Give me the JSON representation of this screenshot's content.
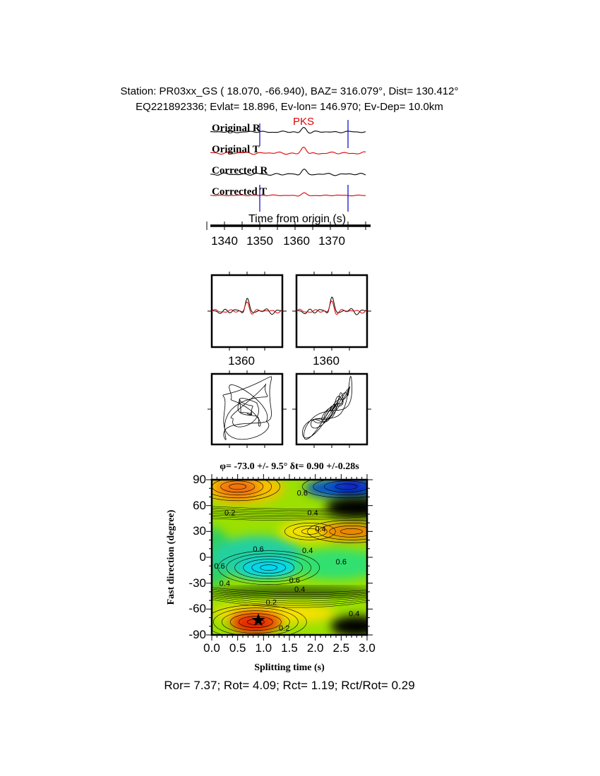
{
  "header": {
    "station_line": "Station: PR03xx_GS (  18.070,  -66.940), BAZ=  316.079°, Dist=  130.412°",
    "event_line": "EQ221892336; Evlat=  18.896, Ev-lon= 146.970; Ev-Dep= 10.0km"
  },
  "waveforms": {
    "traces": [
      "Original R",
      "Original T",
      "Corrected R",
      "Corrected T"
    ],
    "phase_label": "PKS",
    "xlabel": "Time from origin (s)",
    "x_ticks": [
      "1340",
      "1350",
      "1360",
      "1370"
    ],
    "window_start": 1350,
    "window_end": 1375,
    "colors": {
      "radial": "#000000",
      "transverse": "#e00000",
      "window": "#0000cc"
    }
  },
  "window_panels": {
    "x_tick": "1360"
  },
  "chart_data": {
    "type": "heatmap",
    "title": "φ= -73.0 +/- 9.5° δt= 0.90 +/-0.28s",
    "xlabel": "Splitting time (s)",
    "ylabel": "Fast direction (degree)",
    "xlim": [
      0.0,
      3.0
    ],
    "ylim": [
      -90,
      90
    ],
    "x_ticks": [
      "0.0",
      "0.5",
      "1.0",
      "1.5",
      "2.0",
      "2.5",
      "3.0"
    ],
    "y_ticks": [
      "90",
      "60",
      "30",
      "0",
      "-30",
      "-60",
      "-90"
    ],
    "contour_labels": [
      "0.6",
      "0.4",
      "0.2",
      "0.4",
      "0.6",
      "0.4",
      "0.6",
      "0.6",
      "0.6",
      "0.4",
      "0.4",
      "0.2",
      "0.4",
      "0.2"
    ],
    "best_fit": {
      "delay_s": 0.9,
      "phi_deg": -73.0
    },
    "colorscale": "red(low) - yellow - green - cyan - blue(high)"
  },
  "footer": "Ror= 7.37; Rot= 4.09; Rct= 1.19; Rct/Rot= 0.29"
}
